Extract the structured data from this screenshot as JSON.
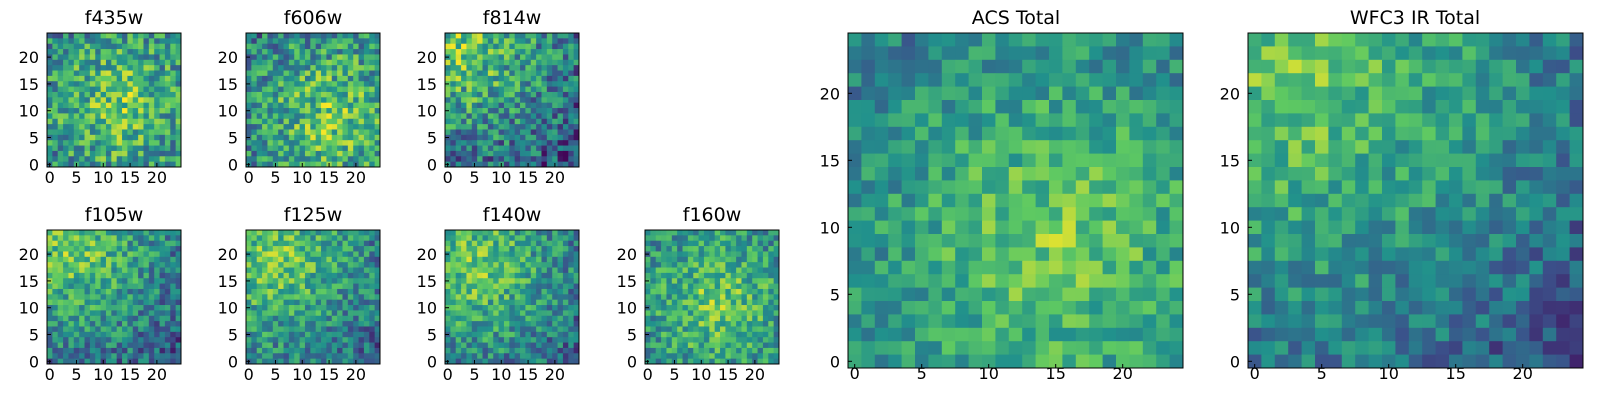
{
  "figure": {
    "colormap": "viridis",
    "colormap_stops": [
      "#440154",
      "#3b528b",
      "#21918c",
      "#5ec962",
      "#fde725"
    ]
  },
  "chart_data": [
    {
      "type": "heatmap",
      "title": "f435w",
      "size": 25,
      "xticks": [
        0,
        5,
        10,
        15,
        20
      ],
      "yticks": [
        0,
        5,
        10,
        15,
        20
      ],
      "peak": [
        13,
        11
      ],
      "noise": 0.55
    },
    {
      "type": "heatmap",
      "title": "f606w",
      "size": 25,
      "xticks": [
        0,
        5,
        10,
        15,
        20
      ],
      "yticks": [
        0,
        5,
        10,
        15,
        20
      ],
      "peak": [
        15,
        9
      ],
      "noise": 0.55
    },
    {
      "type": "heatmap",
      "title": "f814w",
      "size": 25,
      "xticks": [
        0,
        5,
        10,
        15,
        20
      ],
      "yticks": [
        0,
        5,
        10,
        15,
        20
      ],
      "peak": [
        2,
        22
      ],
      "noise": 0.55
    },
    {
      "type": "heatmap",
      "title": "f105w",
      "size": 25,
      "xticks": [
        0,
        5,
        10,
        15,
        20
      ],
      "yticks": [
        0,
        5,
        10,
        15,
        20
      ],
      "peak": [
        4,
        21
      ],
      "noise": 0.45
    },
    {
      "type": "heatmap",
      "title": "f125w",
      "size": 25,
      "xticks": [
        0,
        5,
        10,
        15,
        20
      ],
      "yticks": [
        0,
        5,
        10,
        15,
        20
      ],
      "peak": [
        5,
        19
      ],
      "noise": 0.45
    },
    {
      "type": "heatmap",
      "title": "f140w",
      "size": 25,
      "xticks": [
        0,
        5,
        10,
        15,
        20
      ],
      "yticks": [
        0,
        5,
        10,
        15,
        20
      ],
      "peak": [
        5,
        18
      ],
      "noise": 0.45
    },
    {
      "type": "heatmap",
      "title": "f160w",
      "size": 25,
      "xticks": [
        0,
        5,
        10,
        15,
        20
      ],
      "yticks": [
        0,
        5,
        10,
        15,
        20
      ],
      "peak": [
        13,
        11
      ],
      "noise": 0.45
    },
    {
      "type": "heatmap",
      "title": "ACS Total",
      "size": 25,
      "xticks": [
        0,
        5,
        10,
        15,
        20
      ],
      "yticks": [
        0,
        5,
        10,
        15,
        20
      ],
      "peak": [
        15,
        9
      ],
      "noise": 0.35
    },
    {
      "type": "heatmap",
      "title": "WFC3 IR Total",
      "size": 25,
      "xticks": [
        0,
        5,
        10,
        15,
        20
      ],
      "yticks": [
        0,
        5,
        10,
        15,
        20
      ],
      "peak": [
        3,
        21
      ],
      "noise": 0.35
    }
  ]
}
